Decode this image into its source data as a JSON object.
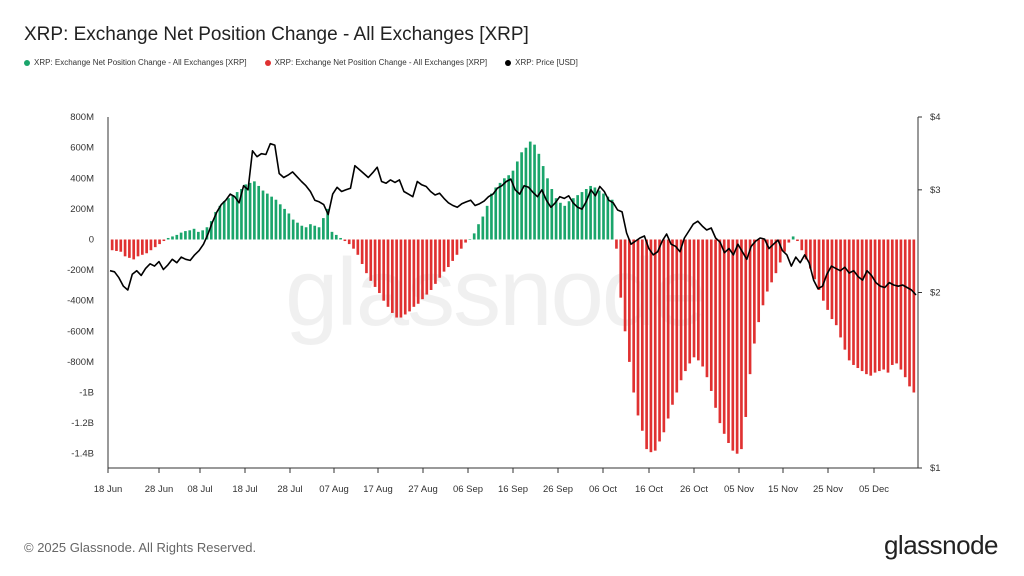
{
  "title": "XRP: Exchange Net Position Change - All Exchanges [XRP]",
  "legend": [
    {
      "label": "XRP: Exchange Net Position Change - All Exchanges [XRP]",
      "color": "#1aa56b"
    },
    {
      "label": "XRP: Exchange Net Position Change - All Exchanges [XRP]",
      "color": "#e03131"
    },
    {
      "label": "XRP: Price [USD]",
      "color": "#000000"
    }
  ],
  "watermark": "glassnode",
  "footer": "© 2025 Glassnode. All Rights Reserved.",
  "brand": "glassnode",
  "chart_data": {
    "type": "bar",
    "x_tick_labels": [
      "18 Jun",
      "28 Jun",
      "08 Jul",
      "18 Jul",
      "28 Jul",
      "07 Aug",
      "17 Aug",
      "27 Aug",
      "06 Sep",
      "16 Sep",
      "26 Sep",
      "06 Oct",
      "16 Oct",
      "26 Oct",
      "05 Nov",
      "15 Nov",
      "25 Nov",
      "05 Dec"
    ],
    "y_left_ticks": [
      "800M",
      "600M",
      "400M",
      "200M",
      "0",
      "-200M",
      "-400M",
      "-600M",
      "-800M",
      "-1B",
      "-1.2B",
      "-1.4B"
    ],
    "y_right_ticks": [
      "$4",
      "$3",
      "$2",
      "$1"
    ],
    "ylim_left": [
      -1500,
      800
    ],
    "ylim_right": [
      1,
      4
    ],
    "right_scale": "log",
    "positive_color": "#1aa56b",
    "negative_color": "#e03131",
    "price_color": "#000000",
    "series": [
      {
        "name": "XRP: Exchange Net Position Change - All Exchanges [XRP]",
        "unit": "millions XRP",
        "values": [
          -70,
          -75,
          -80,
          -110,
          -120,
          -130,
          -110,
          -100,
          -90,
          -70,
          -50,
          -30,
          -10,
          10,
          20,
          30,
          45,
          55,
          60,
          70,
          50,
          60,
          80,
          120,
          180,
          220,
          250,
          270,
          290,
          310,
          330,
          360,
          370,
          380,
          350,
          320,
          300,
          280,
          260,
          230,
          200,
          170,
          130,
          110,
          90,
          80,
          100,
          90,
          80,
          140,
          200,
          50,
          30,
          10,
          -10,
          -30,
          -60,
          -100,
          -160,
          -220,
          -270,
          -310,
          -350,
          -400,
          -440,
          -480,
          -510,
          -510,
          -490,
          -470,
          -440,
          -420,
          -390,
          -360,
          -330,
          -290,
          -250,
          -210,
          -180,
          -140,
          -100,
          -60,
          -20,
          0,
          40,
          100,
          150,
          220,
          300,
          340,
          370,
          400,
          420,
          450,
          510,
          570,
          600,
          640,
          620,
          560,
          480,
          400,
          330,
          270,
          240,
          220,
          250,
          270,
          290,
          310,
          330,
          350,
          340,
          320,
          300,
          280,
          260,
          -60,
          -380,
          -600,
          -800,
          -1000,
          -1150,
          -1250,
          -1370,
          -1390,
          -1380,
          -1320,
          -1260,
          -1170,
          -1080,
          -1000,
          -920,
          -860,
          -810,
          -770,
          -790,
          -830,
          -900,
          -990,
          -1100,
          -1200,
          -1270,
          -1330,
          -1380,
          -1400,
          -1370,
          -1160,
          -880,
          -680,
          -540,
          -430,
          -340,
          -280,
          -220,
          -150,
          -80,
          -20,
          20,
          -10,
          -70,
          -130,
          -190,
          -260,
          -330,
          -400,
          -460,
          -520,
          -560,
          -640,
          -720,
          -790,
          -820,
          -840,
          -860,
          -880,
          -890,
          -870,
          -860,
          -850,
          -870,
          -820,
          -810,
          -850,
          -900,
          -960,
          -1000
        ]
      },
      {
        "name": "XRP: Price [USD]",
        "unit": "USD",
        "values": [
          2.18,
          2.17,
          2.12,
          2.05,
          2.02,
          2.15,
          2.18,
          2.14,
          2.2,
          2.24,
          2.22,
          2.26,
          2.19,
          2.23,
          2.28,
          2.25,
          2.3,
          2.28,
          2.27,
          2.32,
          2.36,
          2.42,
          2.52,
          2.64,
          2.75,
          2.83,
          2.88,
          2.95,
          2.92,
          2.85,
          3.05,
          3.0,
          3.5,
          3.42,
          3.46,
          3.45,
          3.6,
          3.58,
          3.2,
          3.15,
          3.18,
          3.22,
          3.16,
          3.1,
          3.05,
          2.98,
          2.88,
          2.86,
          2.83,
          2.72,
          2.95,
          3.03,
          2.98,
          3.0,
          3.02,
          3.3,
          3.25,
          3.2,
          3.15,
          3.21,
          3.28,
          3.1,
          3.08,
          3.12,
          3.09,
          3.12,
          2.98,
          2.95,
          2.92,
          3.1,
          3.06,
          3.04,
          2.98,
          2.94,
          2.96,
          2.9,
          2.85,
          2.82,
          2.8,
          2.84,
          2.86,
          2.88,
          2.82,
          2.84,
          2.87,
          2.92,
          2.95,
          3.02,
          3.05,
          3.1,
          3.13,
          3.0,
          2.95,
          3.05,
          3.03,
          2.97,
          2.92,
          3.0,
          2.88,
          2.8,
          2.85,
          2.92,
          2.9,
          2.93,
          2.85,
          2.8,
          2.78,
          2.87,
          3.0,
          2.93,
          3.04,
          2.98,
          2.88,
          2.85,
          2.77,
          2.75,
          2.53,
          2.42,
          2.45,
          2.48,
          2.5,
          2.38,
          2.32,
          2.35,
          2.45,
          2.52,
          2.42,
          2.4,
          2.35,
          2.48,
          2.55,
          2.62,
          2.65,
          2.6,
          2.56,
          2.58,
          2.48,
          2.44,
          2.34,
          2.38,
          2.32,
          2.42,
          2.35,
          2.28,
          2.4,
          2.45,
          2.48,
          2.47,
          2.38,
          2.42,
          2.46,
          2.36,
          2.32,
          2.22,
          2.3,
          2.25,
          2.32,
          2.25,
          2.1,
          2.03,
          2.05,
          2.15,
          2.22,
          2.2,
          2.18,
          2.21,
          2.16,
          2.18,
          2.13,
          2.1,
          2.18,
          2.14,
          2.08,
          2.05,
          2.04,
          2.08,
          2.06,
          2.05,
          2.06,
          2.04,
          2.02,
          1.98
        ]
      }
    ]
  }
}
